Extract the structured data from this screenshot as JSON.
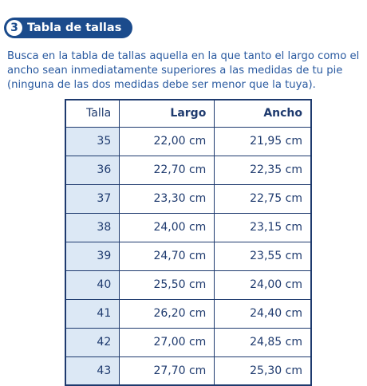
{
  "step": {
    "number": "3",
    "title": "Tabla de tallas"
  },
  "intro_text": "Busca en la tabla de tallas aquella en la que tanto el largo como el ancho sean inmediatamente superiores a las medidas de tu pie (ninguna de las dos medidas debe ser menor que la tuya).",
  "table": {
    "headers": [
      "Talla",
      "Largo",
      "Ancho"
    ],
    "rows": [
      [
        "35",
        "22,00 cm",
        "21,95 cm"
      ],
      [
        "36",
        "22,70 cm",
        "22,35 cm"
      ],
      [
        "37",
        "23,30 cm",
        "22,75 cm"
      ],
      [
        "38",
        "24,00 cm",
        "23,15 cm"
      ],
      [
        "39",
        "24,70 cm",
        "23,55 cm"
      ],
      [
        "40",
        "25,50 cm",
        "24,00 cm"
      ],
      [
        "41",
        "26,20 cm",
        "24,40 cm"
      ],
      [
        "42",
        "27,00 cm",
        "24,85 cm"
      ],
      [
        "43",
        "27,70 cm",
        "25,30 cm"
      ]
    ]
  },
  "colors": {
    "header_pill": "#1b4b8c",
    "text": "#2a5aa0",
    "table_border": "#1e3a6e",
    "talla_cell_bg": "#dce8f5"
  }
}
